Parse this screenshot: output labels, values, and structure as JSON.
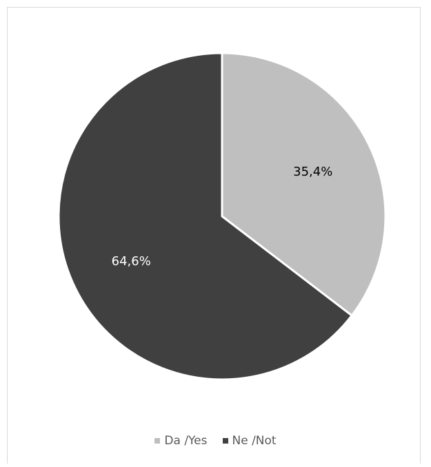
{
  "chart_data": {
    "type": "pie",
    "categories": [
      "Da /Yes",
      "Ne /Not"
    ],
    "values": [
      35.4,
      64.6
    ],
    "labels": [
      "35,4%",
      "64,6%"
    ],
    "colors": [
      "#bfbfbf",
      "#404040"
    ],
    "label_colors": [
      "#000000",
      "#ffffff"
    ],
    "start_angle": "12 o'clock, clockwise",
    "legend_position": "bottom"
  },
  "legend": {
    "items": [
      {
        "label": "Da /Yes",
        "color": "#bfbfbf"
      },
      {
        "label": "Ne /Not",
        "color": "#404040"
      }
    ]
  }
}
